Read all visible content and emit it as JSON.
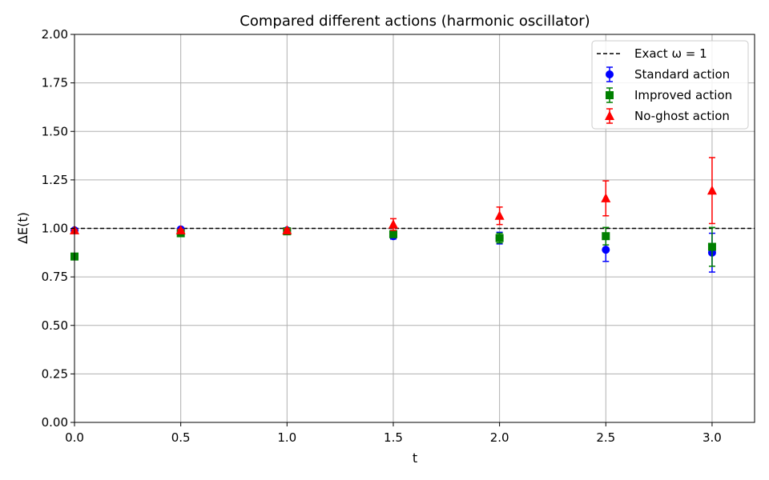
{
  "chart_data": {
    "type": "scatter",
    "title": "Compared different actions (harmonic oscillator)",
    "xlabel": "t",
    "ylabel": "ΔE(t)",
    "xlim": [
      0.0,
      3.2
    ],
    "ylim": [
      0.0,
      2.0
    ],
    "xticks": [
      "0.0",
      "0.5",
      "1.0",
      "1.5",
      "2.0",
      "2.5",
      "3.0"
    ],
    "yticks": [
      "0.00",
      "0.25",
      "0.50",
      "0.75",
      "1.00",
      "1.25",
      "1.50",
      "1.75",
      "2.00"
    ],
    "grid": true,
    "legend_position": "top-right",
    "reference_line": {
      "label": "Exact ω = 1",
      "y": 1.0,
      "style": "dashed",
      "color": "#000000"
    },
    "series": [
      {
        "name": "Standard action",
        "marker": "circle",
        "color": "#0000ff",
        "x": [
          0.0,
          0.5,
          1.0,
          1.5,
          2.0,
          2.5,
          3.0
        ],
        "y": [
          0.99,
          0.995,
          0.99,
          0.96,
          0.95,
          0.89,
          0.875
        ],
        "err": [
          0.005,
          0.006,
          0.008,
          0.015,
          0.03,
          0.06,
          0.1
        ]
      },
      {
        "name": "Improved action",
        "marker": "square",
        "color": "#008000",
        "x": [
          0.0,
          0.5,
          1.0,
          1.5,
          2.0,
          2.5,
          3.0
        ],
        "y": [
          0.855,
          0.975,
          0.985,
          0.97,
          0.95,
          0.96,
          0.905
        ],
        "err": [
          0.005,
          0.006,
          0.008,
          0.015,
          0.025,
          0.045,
          0.1
        ]
      },
      {
        "name": "No-ghost action",
        "marker": "triangle",
        "color": "#ff0000",
        "x": [
          0.0,
          0.5,
          1.0,
          1.5,
          2.0,
          2.5,
          3.0
        ],
        "y": [
          0.99,
          0.99,
          0.99,
          1.02,
          1.065,
          1.155,
          1.195
        ],
        "err": [
          0.004,
          0.005,
          0.008,
          0.03,
          0.045,
          0.09,
          0.17
        ]
      }
    ]
  }
}
